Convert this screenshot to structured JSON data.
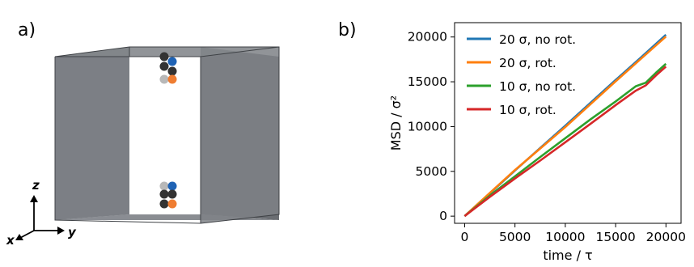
{
  "panel_a": {
    "label": "a)",
    "axes": {
      "x": "x",
      "y": "y",
      "z": "z"
    },
    "colors": {
      "box_face": "#7e8186",
      "box_dark": "#6b6e73",
      "bead_black": "#333333",
      "bead_grey": "#b8b8b8",
      "bead_blue": "#1f63b5",
      "bead_orange": "#ef7d32"
    }
  },
  "panel_b": {
    "label": "b)"
  },
  "chart_data": {
    "type": "line",
    "xlabel": "time / τ",
    "ylabel": "MSD / σ²",
    "xlim": [
      -1000,
      21500
    ],
    "ylim": [
      -800,
      21600
    ],
    "xticks": [
      0,
      5000,
      10000,
      15000,
      20000
    ],
    "yticks": [
      0,
      5000,
      10000,
      15000,
      20000
    ],
    "grid": false,
    "legend_position": "top-left",
    "series": [
      {
        "name": "20 σ, no rot.",
        "color": "#1f77b4",
        "x": [
          0,
          2500,
          5000,
          7500,
          10000,
          12500,
          15000,
          17500,
          20000
        ],
        "y": [
          0,
          2550,
          5100,
          7600,
          10100,
          12650,
          15200,
          17700,
          20250
        ]
      },
      {
        "name": "20 σ, rot.",
        "color": "#ff7f0e",
        "x": [
          0,
          2500,
          5000,
          7500,
          10000,
          12500,
          15000,
          17500,
          20000
        ],
        "y": [
          0,
          2600,
          5150,
          7550,
          9950,
          12500,
          15050,
          17550,
          20050
        ]
      },
      {
        "name": "10 σ, no rot.",
        "color": "#2ca02c",
        "x": [
          0,
          2500,
          5000,
          7500,
          10000,
          12500,
          15000,
          17000,
          18000,
          19000,
          20000
        ],
        "y": [
          0,
          2300,
          4450,
          6600,
          8700,
          10800,
          12800,
          14500,
          14900,
          16000,
          17000
        ]
      },
      {
        "name": "10 σ, rot.",
        "color": "#d62728",
        "x": [
          0,
          2500,
          5000,
          7500,
          10000,
          12500,
          15000,
          17000,
          18000,
          19000,
          20000
        ],
        "y": [
          0,
          2150,
          4200,
          6200,
          8250,
          10300,
          12400,
          14000,
          14600,
          15700,
          16700
        ]
      }
    ]
  }
}
